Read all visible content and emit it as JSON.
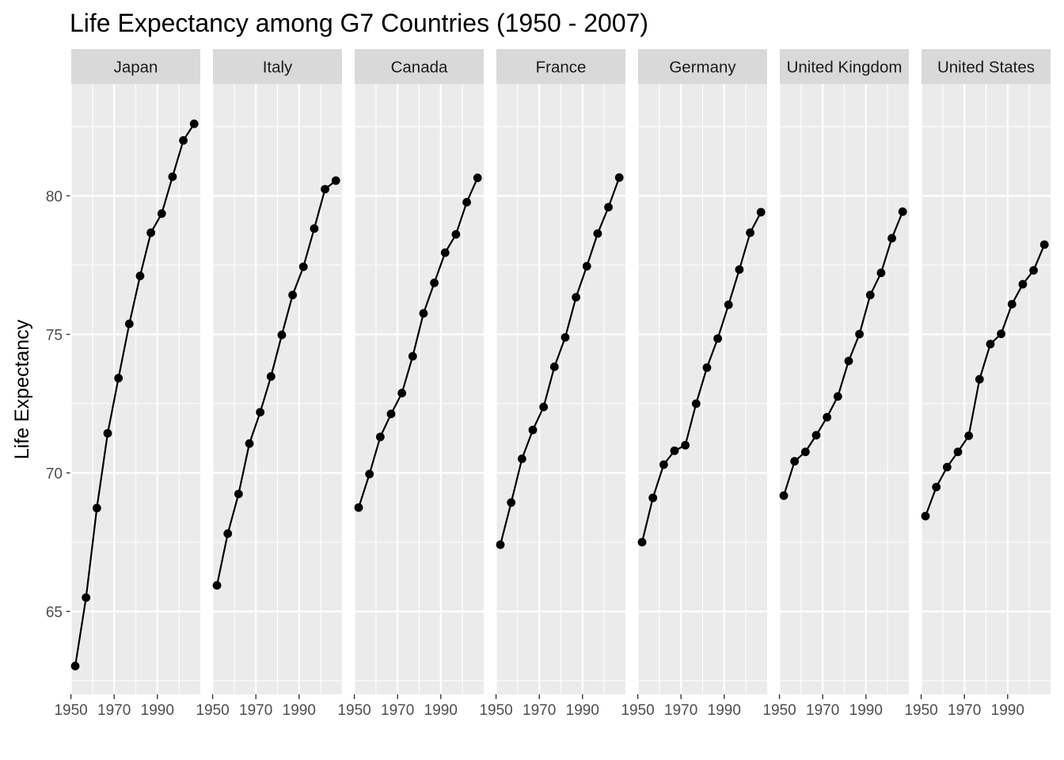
{
  "chart_data": {
    "type": "line",
    "title": "Life Expectancy among G7 Countries (1950 - 2007)",
    "xlabel": "",
    "ylabel": "Life Expectancy",
    "xlim": [
      1950.15,
      2009.85
    ],
    "ylim": [
      62.01,
      84.04
    ],
    "x_ticks": [
      1950,
      1970,
      1990
    ],
    "y_ticks": [
      65,
      70,
      75,
      80
    ],
    "grid": true,
    "facet_by": "country",
    "x": [
      1952,
      1957,
      1962,
      1967,
      1972,
      1977,
      1982,
      1987,
      1992,
      1997,
      2002,
      2007
    ],
    "series": [
      {
        "name": "Japan",
        "values": [
          63.03,
          65.5,
          68.73,
          71.43,
          73.42,
          75.38,
          77.11,
          78.67,
          79.36,
          80.69,
          82.0,
          82.6
        ]
      },
      {
        "name": "Italy",
        "values": [
          65.94,
          67.81,
          69.24,
          71.06,
          72.19,
          73.48,
          74.98,
          76.42,
          77.44,
          78.82,
          80.24,
          80.55
        ]
      },
      {
        "name": "Canada",
        "values": [
          68.75,
          69.96,
          71.3,
          72.13,
          72.88,
          74.21,
          75.76,
          76.86,
          77.95,
          78.61,
          79.77,
          80.65
        ]
      },
      {
        "name": "France",
        "values": [
          67.41,
          68.93,
          70.51,
          71.55,
          72.38,
          73.83,
          74.89,
          76.34,
          77.46,
          78.64,
          79.59,
          80.66
        ]
      },
      {
        "name": "Germany",
        "values": [
          67.5,
          69.1,
          70.3,
          70.8,
          71.0,
          72.5,
          73.8,
          74.85,
          76.07,
          77.34,
          78.67,
          79.41
        ]
      },
      {
        "name": "United Kingdom",
        "values": [
          69.18,
          70.42,
          70.76,
          71.36,
          72.01,
          72.76,
          74.04,
          75.01,
          76.42,
          77.22,
          78.47,
          79.43
        ]
      },
      {
        "name": "United States",
        "values": [
          68.44,
          69.49,
          70.21,
          70.76,
          71.34,
          73.38,
          74.65,
          75.02,
          76.09,
          76.81,
          77.31,
          78.24
        ]
      }
    ]
  }
}
